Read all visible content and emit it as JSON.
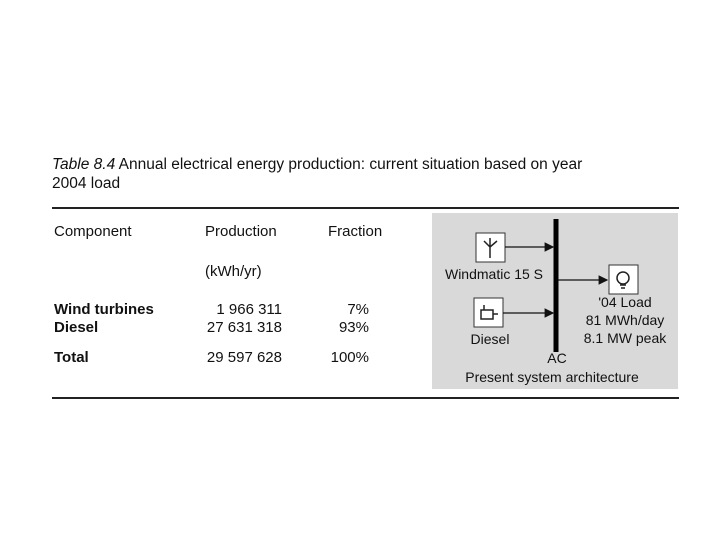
{
  "caption": {
    "label": "Table 8.4",
    "text_line1": "Annual electrical energy production: current situation based on year",
    "text_line2": "2004 load"
  },
  "table": {
    "header": [
      "Component",
      "Production",
      "Fraction"
    ],
    "units": "(kWh/yr)",
    "rows": [
      [
        "Wind turbines",
        "1 966 311",
        "7%"
      ],
      [
        "Diesel",
        "27 631 318",
        "93%"
      ],
      [
        "Total",
        "29 597 628",
        "100%"
      ]
    ]
  },
  "diagram": {
    "wind_label": "Windmatic 15 S",
    "diesel_label": "Diesel",
    "bus_label": "AC",
    "load_label": "'04 Load",
    "load_energy": "81 MWh/day",
    "load_peak": "8.1 MW peak",
    "caption": "Present system architecture"
  }
}
